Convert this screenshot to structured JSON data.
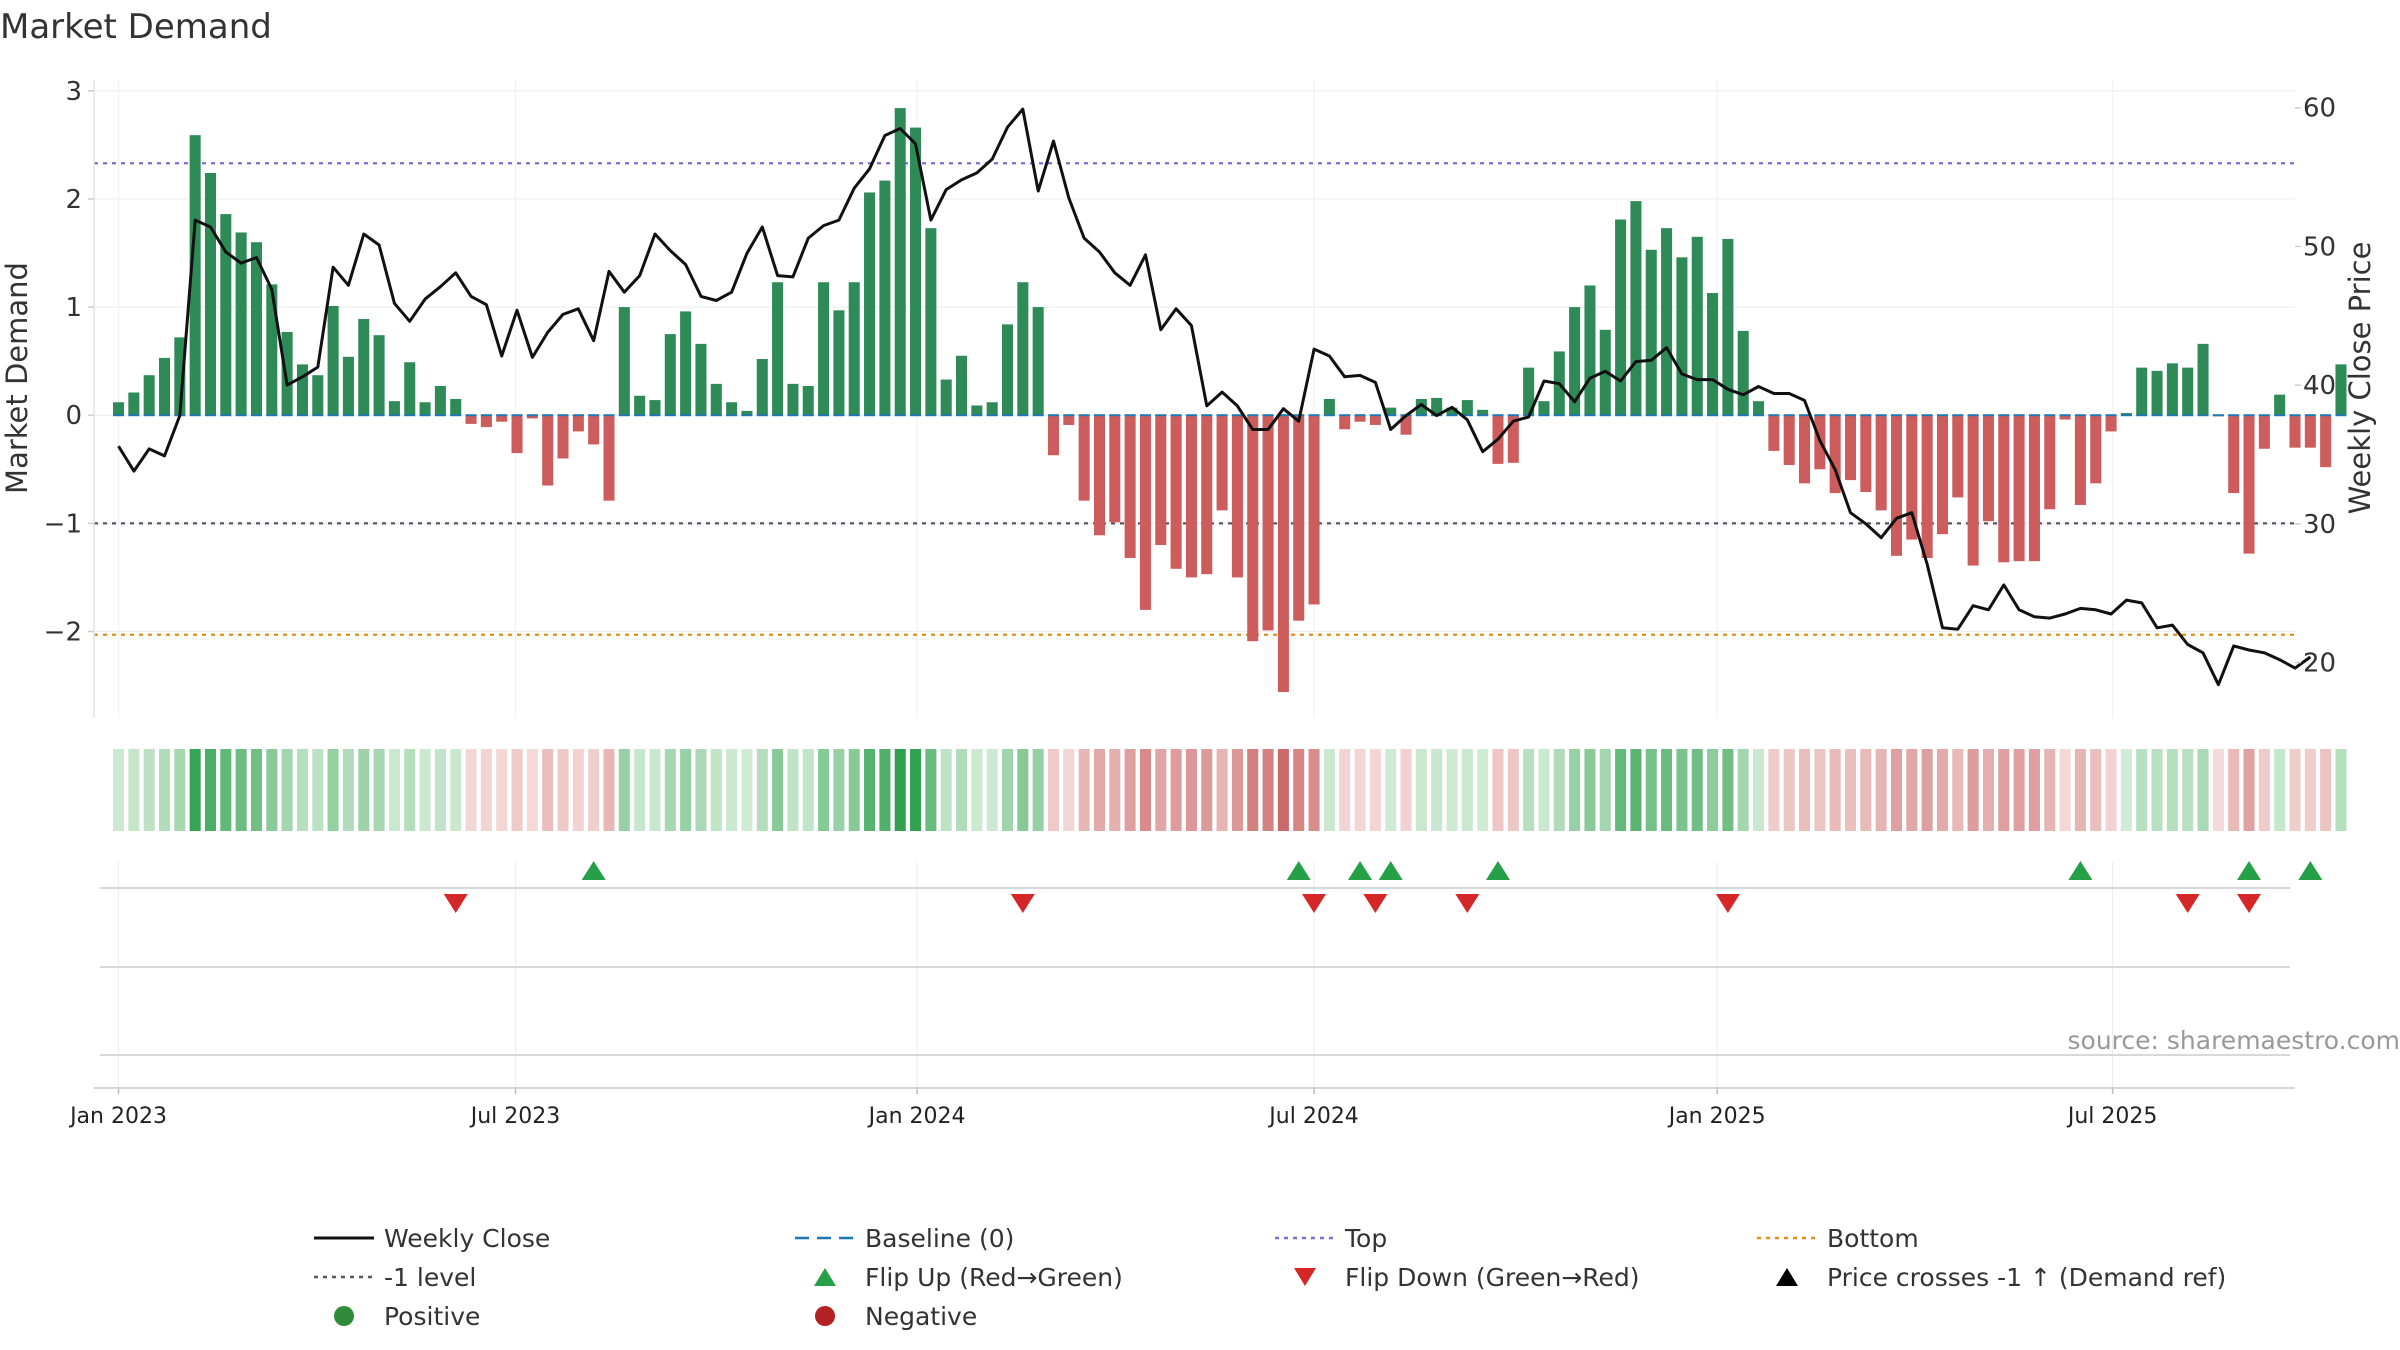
{
  "chart_data": {
    "type": "bar",
    "title": "Market Demand",
    "source": "source: sharemaestro.com",
    "ylabel": "Market Demand",
    "y2label": "Weekly Close Price",
    "ylim": [
      -2.8,
      3.1
    ],
    "y2lim": [
      16,
      62
    ],
    "yticks": [
      3,
      2,
      1,
      0,
      -1,
      -2
    ],
    "ytick_labels": [
      "3",
      "2",
      "1",
      "0",
      "−1",
      "−2"
    ],
    "y2ticks": [
      60,
      50,
      40,
      30,
      20
    ],
    "xlim_week": [
      -1.6,
      142
    ],
    "xticks": [
      {
        "week": 0,
        "label": "Jan 2023"
      },
      {
        "week": 25.9,
        "label": "Jul 2023"
      },
      {
        "week": 52.1,
        "label": "Jan 2024"
      },
      {
        "week": 78,
        "label": "Jul 2024"
      },
      {
        "week": 104.3,
        "label": "Jan 2025"
      },
      {
        "week": 130.1,
        "label": "Jul 2025"
      }
    ],
    "reference_lines": {
      "top": 2.33,
      "minus_one": -1.0,
      "bottom": -2.03,
      "baseline": 0
    },
    "demand": [
      0.12,
      0.21,
      0.37,
      0.53,
      0.72,
      2.59,
      2.24,
      1.86,
      1.69,
      1.6,
      1.21,
      0.77,
      0.47,
      0.37,
      1.01,
      0.54,
      0.89,
      0.74,
      0.13,
      0.49,
      0.12,
      0.27,
      0.15,
      -0.08,
      -0.11,
      -0.06,
      -0.35,
      -0.03,
      -0.65,
      -0.4,
      -0.15,
      -0.27,
      -0.79,
      1.0,
      0.18,
      0.14,
      0.75,
      0.96,
      0.66,
      0.29,
      0.12,
      0.04,
      0.52,
      1.23,
      0.29,
      0.27,
      1.23,
      0.97,
      1.23,
      2.06,
      2.17,
      2.84,
      2.66,
      1.73,
      0.33,
      0.55,
      0.09,
      0.12,
      0.84,
      1.23,
      1.0,
      -0.37,
      -0.09,
      -0.79,
      -1.11,
      -0.99,
      -1.32,
      -1.8,
      -1.2,
      -1.42,
      -1.5,
      -1.47,
      -0.88,
      -1.5,
      -2.09,
      -1.99,
      -2.56,
      -1.9,
      -1.75,
      0.15,
      -0.13,
      -0.06,
      -0.09,
      0.07,
      -0.18,
      0.15,
      0.16,
      0.07,
      0.14,
      0.05,
      -0.45,
      -0.44,
      0.44,
      0.13,
      0.59,
      1.0,
      1.2,
      0.79,
      1.81,
      1.98,
      1.53,
      1.73,
      1.46,
      1.65,
      1.13,
      1.63,
      0.78,
      0.13,
      -0.33,
      -0.46,
      -0.63,
      -0.5,
      -0.72,
      -0.6,
      -0.71,
      -0.88,
      -1.3,
      -1.15,
      -1.32,
      -1.1,
      -0.76,
      -1.39,
      -0.98,
      -1.36,
      -1.35,
      -1.35,
      -0.87,
      -0.04,
      -0.83,
      -0.63,
      -0.15,
      0.02,
      0.44,
      0.41,
      0.48,
      0.44,
      0.66,
      -0.01,
      -0.72,
      -1.28,
      -0.31,
      0.19,
      -0.3,
      -0.3,
      -0.48,
      0.47
    ],
    "price": [
      35.6,
      33.8,
      35.4,
      34.9,
      37.8,
      51.9,
      51.4,
      49.6,
      48.8,
      49.2,
      46.9,
      40.0,
      40.6,
      41.3,
      48.5,
      47.2,
      50.9,
      50.1,
      45.9,
      44.6,
      46.2,
      47.1,
      48.1,
      46.4,
      45.8,
      42.1,
      45.4,
      42.0,
      43.8,
      45.1,
      45.5,
      43.2,
      48.2,
      46.7,
      47.9,
      50.9,
      49.7,
      48.7,
      46.4,
      46.1,
      46.7,
      49.5,
      51.4,
      47.9,
      47.8,
      50.6,
      51.5,
      51.9,
      54.2,
      55.6,
      58.0,
      58.5,
      57.4,
      51.9,
      54.1,
      54.8,
      55.3,
      56.3,
      58.6,
      59.9,
      54.0,
      57.6,
      53.5,
      50.6,
      49.6,
      48.1,
      47.2,
      49.4,
      44.0,
      45.5,
      44.3,
      38.5,
      39.5,
      38.5,
      36.8,
      36.8,
      38.3,
      37.4,
      42.6,
      42.1,
      40.6,
      40.7,
      40.2,
      36.8,
      37.8,
      38.6,
      37.8,
      38.4,
      37.5,
      35.2,
      36.1,
      37.4,
      37.7,
      40.3,
      40.1,
      38.8,
      40.5,
      41.0,
      40.3,
      41.7,
      41.8,
      42.7,
      40.8,
      40.4,
      40.4,
      39.7,
      39.3,
      39.9,
      39.4,
      39.4,
      38.9,
      36.0,
      33.9,
      30.8,
      30.0,
      29.0,
      30.4,
      30.8,
      27.1,
      22.5,
      22.4,
      24.1,
      23.8,
      25.6,
      23.8,
      23.3,
      23.2,
      23.5,
      23.9,
      23.8,
      23.5,
      24.5,
      24.3,
      22.5,
      22.7,
      21.3,
      20.7,
      18.4,
      21.2,
      20.9,
      20.7,
      20.2,
      19.6,
      20.4
    ],
    "flip_up_weeks": [
      31,
      77,
      81,
      83,
      90,
      128,
      139,
      143
    ],
    "flip_down_weeks": [
      22,
      59,
      78,
      82,
      88,
      105,
      135,
      139
    ],
    "legend": [
      {
        "label": "Weekly Close",
        "type": "line",
        "color": "#111111"
      },
      {
        "label": "Baseline (0)",
        "type": "dash",
        "color": "#1f77b4"
      },
      {
        "label": "Top",
        "type": "dot",
        "color": "#7b6fd6"
      },
      {
        "label": "Bottom",
        "type": "dot",
        "color": "#e0901a"
      },
      {
        "label": "-1 level",
        "type": "dot",
        "color": "#555566"
      },
      {
        "label": "Flip Up (Red→Green)",
        "type": "tri-up",
        "color": "#26a047"
      },
      {
        "label": "Flip Down (Green→Red)",
        "type": "tri-down",
        "color": "#d62728"
      },
      {
        "label": "Price crosses -1 ↑ (Demand ref)",
        "type": "tri-up",
        "color": "#000000"
      },
      {
        "label": "Positive",
        "type": "circle",
        "color": "#2e8b3a"
      },
      {
        "label": "Negative",
        "type": "circle",
        "color": "#b22222"
      }
    ],
    "colors": {
      "positive": "#2e8b57",
      "negative": "#cd5c5c",
      "price": "#111111"
    }
  }
}
